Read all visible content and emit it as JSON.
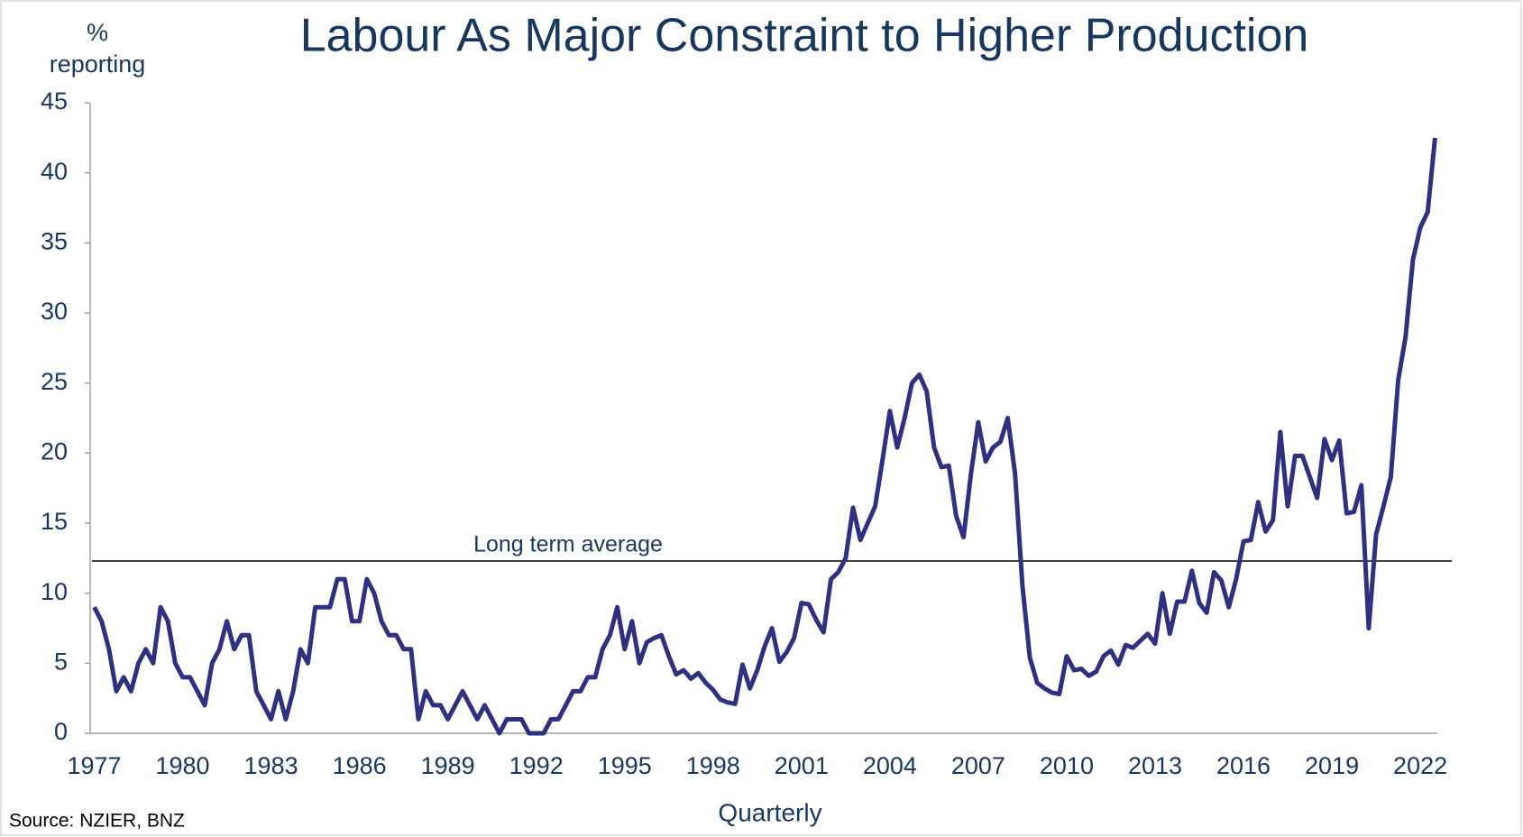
{
  "chart_data": {
    "type": "line",
    "title": "Labour As Major Constraint to Higher Production",
    "y_label": "% reporting",
    "x_label": "Quarterly",
    "source": "Source: NZIER, BNZ",
    "categories": [
      "1977",
      null,
      null,
      null,
      null,
      null,
      null,
      null,
      null,
      null,
      null,
      null,
      "1980",
      null,
      null,
      null,
      null,
      null,
      null,
      null,
      null,
      null,
      null,
      null,
      "1983",
      null,
      null,
      null,
      null,
      null,
      null,
      null,
      null,
      null,
      null,
      null,
      "1986",
      null,
      null,
      null,
      null,
      null,
      null,
      null,
      null,
      null,
      null,
      null,
      "1989",
      null,
      null,
      null,
      null,
      null,
      null,
      null,
      null,
      null,
      null,
      null,
      "1992",
      null,
      null,
      null,
      null,
      null,
      null,
      null,
      null,
      null,
      null,
      null,
      "1995",
      null,
      null,
      null,
      null,
      null,
      null,
      null,
      null,
      null,
      null,
      null,
      "1998",
      null,
      null,
      null,
      null,
      null,
      null,
      null,
      null,
      null,
      null,
      null,
      "2001",
      null,
      null,
      null,
      null,
      null,
      null,
      null,
      null,
      null,
      null,
      null,
      "2004",
      null,
      null,
      null,
      null,
      null,
      null,
      null,
      null,
      null,
      null,
      null,
      "2007",
      null,
      null,
      null,
      null,
      null,
      null,
      null,
      null,
      null,
      null,
      null,
      "2010",
      null,
      null,
      null,
      null,
      null,
      null,
      null,
      null,
      null,
      null,
      null,
      "2013",
      null,
      null,
      null,
      null,
      null,
      null,
      null,
      null,
      null,
      null,
      null,
      "2016",
      null,
      null,
      null,
      null,
      null,
      null,
      null,
      null,
      null,
      null,
      null,
      "2019",
      null,
      null,
      null,
      null,
      null,
      null,
      null,
      null,
      null,
      null,
      null,
      "2022",
      null,
      null
    ],
    "series": [
      {
        "name": "Labour",
        "color": "#2e3080",
        "values": [
          9,
          8,
          6,
          3,
          4,
          3,
          5,
          6,
          5,
          9,
          8,
          5,
          4,
          4,
          3,
          2,
          5,
          6,
          8,
          6,
          7,
          7,
          3,
          2,
          1,
          3,
          1,
          3,
          6,
          5,
          9,
          9,
          9,
          11,
          11,
          8,
          8,
          11,
          10,
          8,
          7,
          7,
          6,
          6,
          1,
          3,
          2,
          2,
          1,
          2,
          3,
          2,
          1,
          2,
          1,
          0,
          1,
          1,
          1,
          0,
          0,
          0,
          1,
          1,
          2,
          3,
          3,
          4,
          4,
          6,
          7,
          9,
          6,
          8,
          5,
          6.5,
          6.8,
          7,
          5.5,
          4.2,
          4.5,
          3.9,
          4.3,
          3.6,
          3.1,
          2.4,
          2.2,
          2.1,
          4.9,
          3.2,
          4.5,
          6.2,
          7.5,
          5.1,
          5.8,
          6.8,
          9.3,
          9.2,
          8.1,
          7.2,
          11,
          11.5,
          12.5,
          16.1,
          13.8,
          15,
          16.2,
          19.5,
          23,
          20.4,
          22.5,
          25,
          25.6,
          24.4,
          20.4,
          19,
          19.1,
          15.5,
          14,
          18.5,
          22.2,
          19.4,
          20.4,
          20.8,
          22.5,
          18.5,
          10.5,
          5.4,
          3.6,
          3.2,
          2.9,
          2.8,
          5.5,
          4.5,
          4.6,
          4.1,
          4.4,
          5.5,
          5.9,
          4.9,
          6.3,
          6.1,
          6.6,
          7.1,
          6.4,
          10,
          7.1,
          9.4,
          9.4,
          11.6,
          9.3,
          8.6,
          11.5,
          10.9,
          9,
          11,
          13.7,
          13.8,
          16.5,
          14.4,
          15.2,
          21.5,
          16.2,
          19.8,
          19.8,
          18.3,
          16.8,
          21,
          19.5,
          20.9,
          15.7,
          15.8,
          17.7,
          7.5,
          14.2,
          16.2,
          18.3,
          25.2,
          28.3,
          33.8,
          36.1,
          37.2,
          42.5
        ]
      }
    ],
    "reference_line": {
      "label": "Long term average",
      "value": 12.3
    },
    "ylim": [
      0,
      45
    ],
    "yticks": [
      0,
      5,
      10,
      15,
      20,
      25,
      30,
      35,
      40,
      45
    ]
  }
}
